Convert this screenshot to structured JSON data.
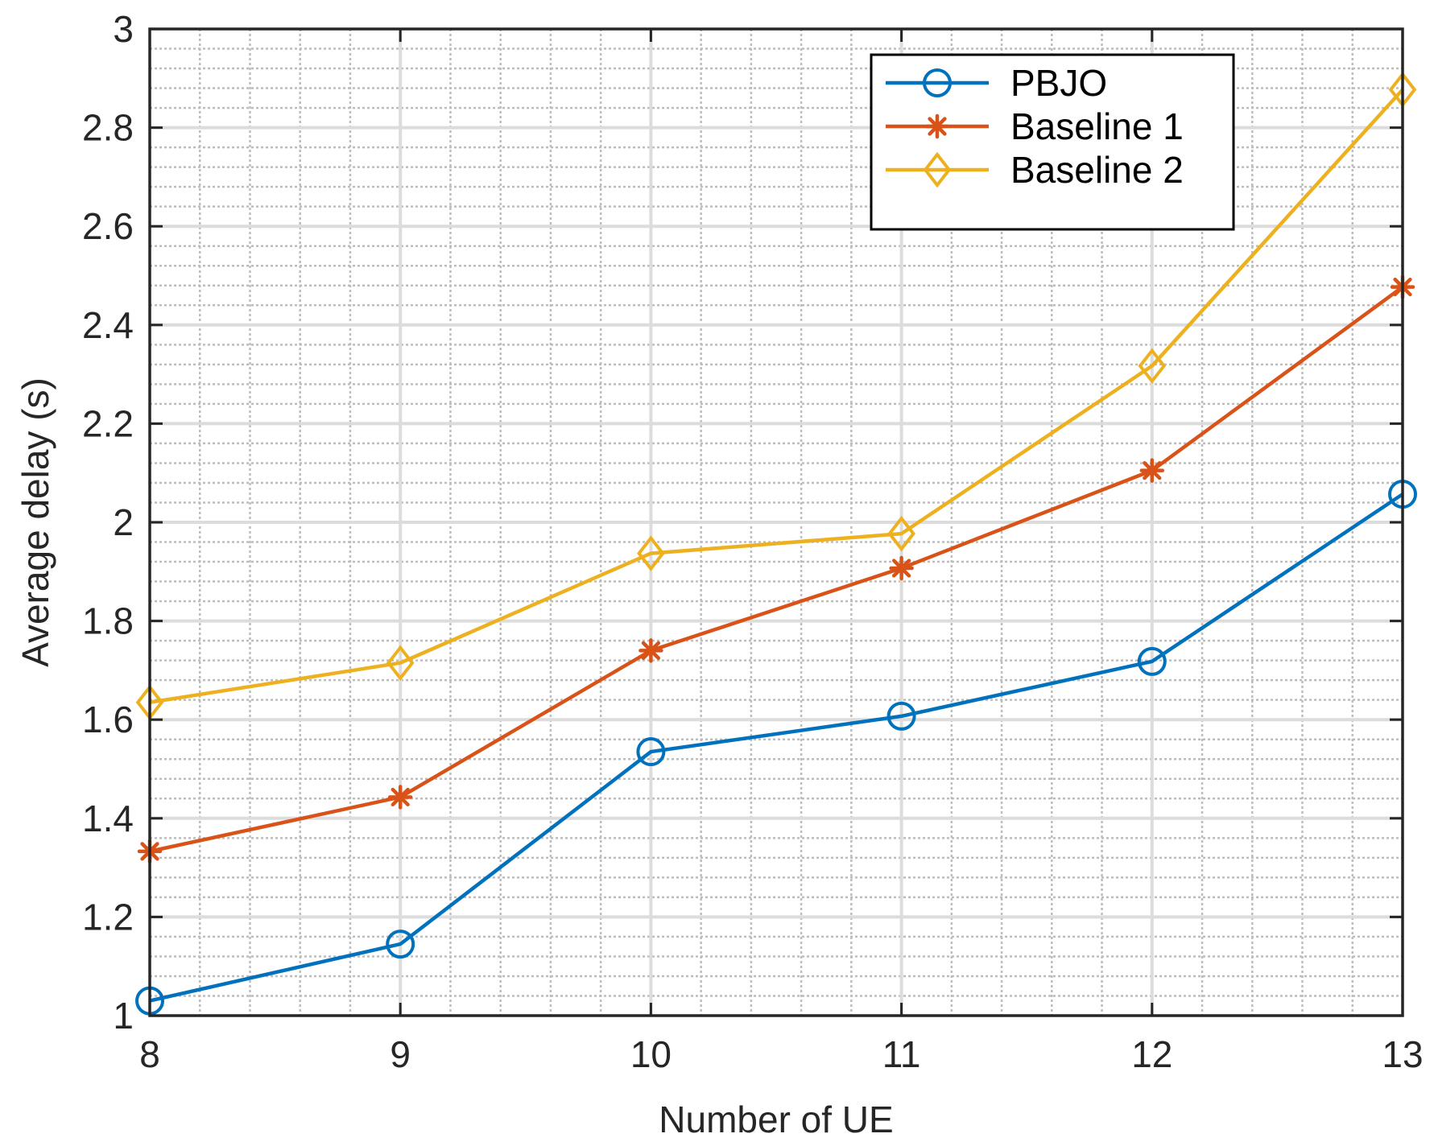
{
  "chart_data": {
    "type": "line",
    "title": "",
    "xlabel": "Number of UE",
    "ylabel": "Average delay (s)",
    "x": [
      8,
      9,
      10,
      11,
      12,
      13
    ],
    "xlim": [
      8,
      13
    ],
    "ylim": [
      1,
      3
    ],
    "xticks": [
      8,
      9,
      10,
      11,
      12,
      13
    ],
    "xtick_labels": [
      "8",
      "9",
      "10",
      "11",
      "12",
      "13"
    ],
    "yticks": [
      1,
      1.2,
      1.4,
      1.6,
      1.8,
      2,
      2.2,
      2.4,
      2.6,
      2.8,
      3
    ],
    "ytick_labels": [
      "1",
      "1.2",
      "1.4",
      "1.6",
      "1.8",
      "2",
      "2.2",
      "2.4",
      "2.6",
      "2.8",
      "3"
    ],
    "grid": "major and minor",
    "legend_position": "top-right",
    "series": [
      {
        "name": "PBJO",
        "color": "#0072BD",
        "marker": "circle",
        "values": [
          1.03,
          1.145,
          1.535,
          1.607,
          1.718,
          2.057
        ]
      },
      {
        "name": "Baseline 1",
        "color": "#D95319",
        "marker": "asterisk",
        "values": [
          1.333,
          1.443,
          1.74,
          1.907,
          2.105,
          2.477
        ]
      },
      {
        "name": "Baseline 2",
        "color": "#EDB120",
        "marker": "diamond",
        "values": [
          1.635,
          1.715,
          1.937,
          1.977,
          2.317,
          2.877
        ]
      }
    ]
  }
}
